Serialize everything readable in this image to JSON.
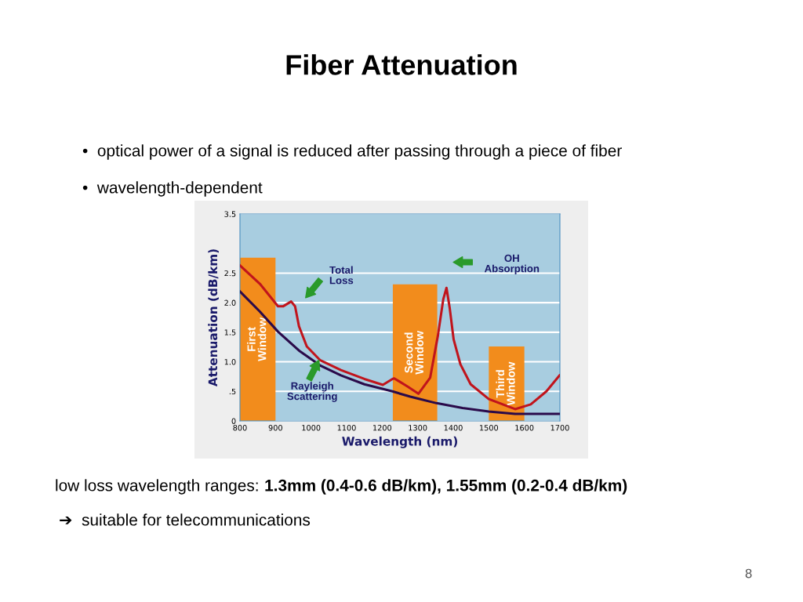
{
  "chart_data": {
    "type": "line",
    "title": "Fiber Attenuation",
    "xlabel": "Wavelength (nm)",
    "ylabel": "Attenuation (dB/km)",
    "xlim": [
      800,
      1700
    ],
    "xticks": [
      800,
      900,
      1000,
      1100,
      1200,
      1300,
      1400,
      1500,
      1600,
      1700
    ],
    "ylim": [
      0,
      3.5
    ],
    "yticks": [
      0,
      {
        "value": 0.5,
        "label": ".5"
      },
      {
        "value": 1.0,
        "label": "1.0"
      },
      1.5,
      {
        "value": 2.0,
        "label": "2.0"
      },
      2.5,
      3.5
    ],
    "grid": "y",
    "legend": false,
    "series": [
      {
        "name": "First Window",
        "type": "area",
        "color": "#f28c1c",
        "x": [
          800,
          900
        ],
        "values": [
          2.76,
          2.76
        ]
      },
      {
        "name": "Second Window",
        "type": "area",
        "color": "#f28c1c",
        "x": [
          1230,
          1355
        ],
        "values": [
          2.31,
          2.31
        ]
      },
      {
        "name": "Third Window",
        "type": "area",
        "color": "#f28c1c",
        "x": [
          1500,
          1600
        ],
        "values": [
          1.26,
          1.26
        ]
      },
      {
        "color": "#c0141c",
        "x": [
          800,
          856,
          907,
          922,
          944,
          955,
          966,
          988,
          1025,
          1084,
          1150,
          1202,
          1229,
          1234,
          1272,
          1302,
          1335,
          1357,
          1372,
          1381,
          1390,
          1401,
          1420,
          1449,
          1500,
          1574,
          1618,
          1662,
          1699
        ],
        "values": [
          2.63,
          2.32,
          1.94,
          1.94,
          2.02,
          1.94,
          1.6,
          1.26,
          1.03,
          0.86,
          0.71,
          0.61,
          0.71,
          0.72,
          0.58,
          0.46,
          0.73,
          1.45,
          2.06,
          2.25,
          1.91,
          1.38,
          0.96,
          0.62,
          0.37,
          0.2,
          0.28,
          0.5,
          0.77
        ]
      },
      {
        "color": "#2a0a4a",
        "x": [
          800,
          856,
          907,
          966,
          1025,
          1084,
          1150,
          1229,
          1279,
          1353,
          1426,
          1500,
          1574,
          1699
        ],
        "values": [
          2.19,
          1.85,
          1.51,
          1.19,
          0.94,
          0.77,
          0.62,
          0.5,
          0.41,
          0.3,
          0.22,
          0.16,
          0.12,
          0.12
        ]
      }
    ],
    "annotations": [
      "Total\nLoss",
      "Rayleigh\nScattering",
      "OH\nAbsorption",
      "•  optical power of a signal is reduced after passing through a piece of fiber",
      "•  wavelength-dependent",
      "low loss wavelength ranges: ",
      "1.3mm (0.4-0.6 dB/km), 1.55mm (0.2-0.4 dB/km)",
      "➔  suitable for telecommunications",
      "8"
    ]
  }
}
